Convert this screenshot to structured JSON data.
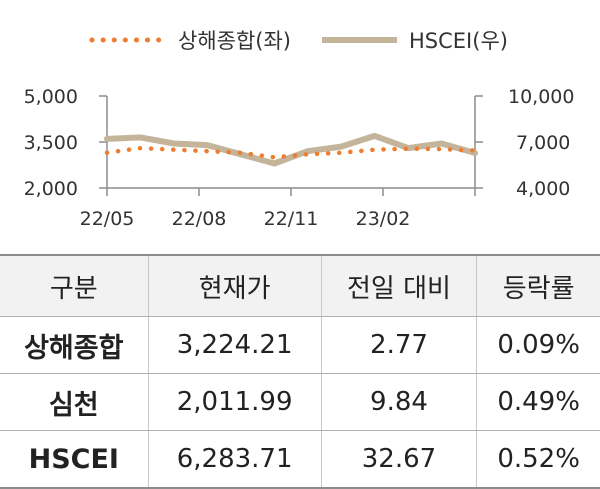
{
  "chart_data": {
    "type": "line",
    "x_ticks": [
      "22/05",
      "22/08",
      "22/11",
      "23/02"
    ],
    "x": [
      "22/05",
      "22/06",
      "22/07",
      "22/08",
      "22/09",
      "22/10",
      "22/11",
      "22/12",
      "23/01",
      "23/02",
      "23/03",
      "23/04"
    ],
    "series": [
      {
        "name": "상해종합(좌)",
        "axis": "left",
        "style": "dotted",
        "color": "#ED7D31",
        "values": [
          3150,
          3300,
          3250,
          3200,
          3150,
          3000,
          3100,
          3150,
          3250,
          3280,
          3270,
          3224
        ]
      },
      {
        "name": "HSCEI(우)",
        "axis": "right",
        "style": "solid",
        "color": "#C4B49A",
        "values": [
          7200,
          7300,
          6900,
          6800,
          6200,
          5600,
          6400,
          6700,
          7400,
          6600,
          6900,
          6284
        ]
      }
    ],
    "y_left": {
      "ticks": [
        "5,000",
        "3,500",
        "2,000"
      ],
      "ylim": [
        2000,
        5000
      ]
    },
    "y_right": {
      "ticks": [
        "10,000",
        "7,000",
        "4,000"
      ],
      "ylim": [
        4000,
        10000
      ]
    }
  },
  "table": {
    "headers": [
      "구분",
      "현재가",
      "전일 대비",
      "등락률"
    ],
    "rows": [
      [
        "상해종합",
        "3,224.21",
        "2.77",
        "0.09%"
      ],
      [
        "심천",
        "2,011.99",
        "9.84",
        "0.49%"
      ],
      [
        "HSCEI",
        "6,283.71",
        "32.67",
        "0.52%"
      ]
    ]
  }
}
